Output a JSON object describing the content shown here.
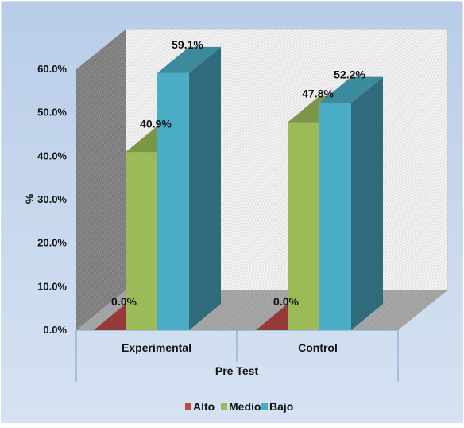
{
  "chart_data": {
    "type": "bar",
    "categories": [
      "Experimental",
      "Control"
    ],
    "series": [
      {
        "name": "Alto",
        "values": [
          0.0,
          0.0
        ],
        "color": "#b94a48"
      },
      {
        "name": "Medio",
        "values": [
          40.9,
          47.8
        ],
        "color": "#9bbb59"
      },
      {
        "name": "Bajo",
        "values": [
          59.1,
          52.2
        ],
        "color": "#4bacc6"
      }
    ],
    "data_labels": [
      [
        "0.0%",
        "0.0%"
      ],
      [
        "40.9%",
        "47.8%"
      ],
      [
        "59.1%",
        "52.2%"
      ]
    ],
    "ylabel": "%",
    "xlabel": "Pre Test",
    "ylim": [
      0,
      60
    ],
    "yticks": [
      0,
      10,
      20,
      30,
      40,
      50,
      60
    ],
    "ytick_labels": [
      "0.0%",
      "10.0%",
      "20.0%",
      "30.0%",
      "40.0%",
      "50.0%",
      "60.0%"
    ],
    "grid": false,
    "legend_position": "bottom",
    "style": "3d-clustered-column",
    "colors": {
      "background_outer": "#c5d6ec",
      "plot_back_wall": "#f1f1f1",
      "side_wall": "#8a8a8a",
      "floor": "#a6a6a6"
    }
  }
}
